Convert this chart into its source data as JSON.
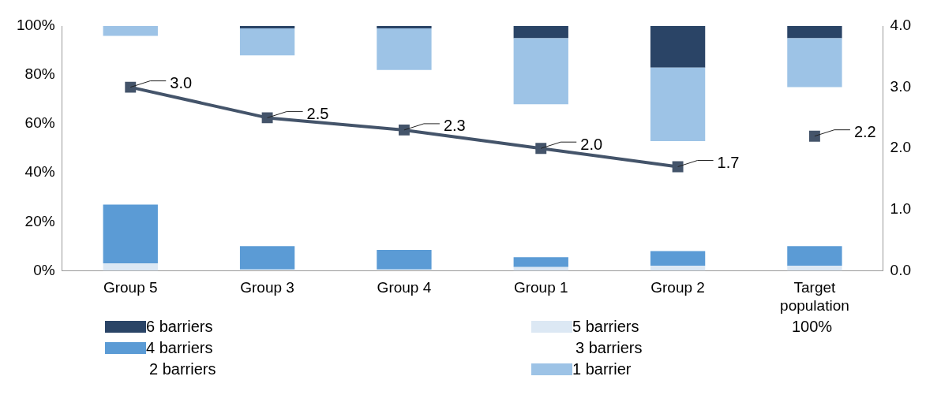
{
  "chart_data": {
    "type": "bar",
    "categories": [
      "Group 5",
      "Group 3",
      "Group 4",
      "Group 1",
      "Group 2",
      "Target population"
    ],
    "series": [
      {
        "name": "5 barriers",
        "color": "#dce8f4",
        "base": [
          0,
          null,
          null,
          0,
          0,
          0
        ],
        "values": [
          3,
          null,
          null,
          1.5,
          2,
          2
        ]
      },
      {
        "name": "4 barriers",
        "color": "#5b9bd5",
        "base": [
          3,
          0.5,
          0.5,
          1.5,
          2,
          2
        ],
        "values": [
          24,
          9.5,
          8,
          4,
          6,
          8
        ]
      },
      {
        "name": "1 barrier",
        "color": "#9dc3e6",
        "base": [
          96,
          88,
          82,
          68,
          53,
          75
        ],
        "values": [
          4,
          11,
          17,
          27,
          30,
          20
        ]
      },
      {
        "name": "6 barriers",
        "color": "#2a4466",
        "base": [
          null,
          99,
          99,
          95,
          83,
          95
        ],
        "values": [
          null,
          1,
          1,
          5,
          17,
          5
        ]
      },
      {
        "type": "line",
        "axis": "y2",
        "color": "#44546a",
        "values": [
          3.0,
          2.5,
          2.3,
          2.0,
          1.7,
          null
        ],
        "value_labels": [
          "3.0",
          "2.5",
          "2.3",
          "2.0",
          "1.7",
          null
        ]
      },
      {
        "type": "scatter",
        "axis": "y2",
        "color": "#44546a",
        "values": [
          null,
          null,
          null,
          null,
          null,
          2.2
        ],
        "value_labels": [
          null,
          null,
          null,
          null,
          null,
          "2.2"
        ]
      }
    ],
    "ylim": [
      0,
      100
    ],
    "yticks": [
      {
        "value": 0,
        "label": "0%"
      },
      {
        "value": 20,
        "label": "20%"
      },
      {
        "value": 40,
        "label": "40%"
      },
      {
        "value": 60,
        "label": "60%"
      },
      {
        "value": 80,
        "label": "80%"
      },
      {
        "value": 100,
        "label": "100%"
      }
    ],
    "y2lim": [
      0,
      4
    ],
    "y2ticks": [
      {
        "value": 0,
        "label": "0.0"
      },
      {
        "value": 1,
        "label": "1.0"
      },
      {
        "value": 2,
        "label": "2.0"
      },
      {
        "value": 3,
        "label": "3.0"
      },
      {
        "value": 4,
        "label": "4.0"
      }
    ],
    "marker": "square",
    "legend": "bottom",
    "annotations": [
      "3 barriers",
      "2 barriers",
      "100%"
    ]
  }
}
